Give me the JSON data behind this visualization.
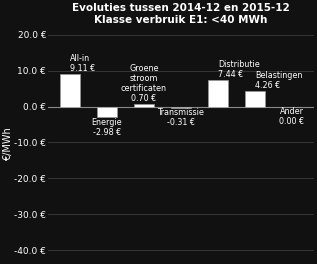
{
  "title_line1": "Evoluties tussen 2014-12 en 2015-12",
  "title_line2": "Klasse verbruik E1: <40 MWh",
  "values": [
    9.11,
    -2.98,
    0.7,
    -0.31,
    7.44,
    4.26,
    0.0
  ],
  "bar_color": "#ffffff",
  "bar_edgecolor": "#999999",
  "background_color": "#111111",
  "text_color": "#ffffff",
  "ylabel": "€/MWh",
  "ylim": [
    -43,
    22
  ],
  "yticks": [
    20.0,
    10.0,
    0.0,
    -10.0,
    -20.0,
    -30.0,
    -40.0
  ],
  "ytick_labels": [
    "20.0 €",
    "10.0 €",
    "0.0 €",
    "-10.0 €",
    "-20.0 €",
    "-30.0 €",
    "-40.0 €"
  ],
  "title_fontsize": 7.5,
  "label_fontsize": 5.8,
  "ylabel_fontsize": 7,
  "ytick_fontsize": 6.5,
  "gridline_color": "#444444",
  "zeroline_color": "#888888"
}
